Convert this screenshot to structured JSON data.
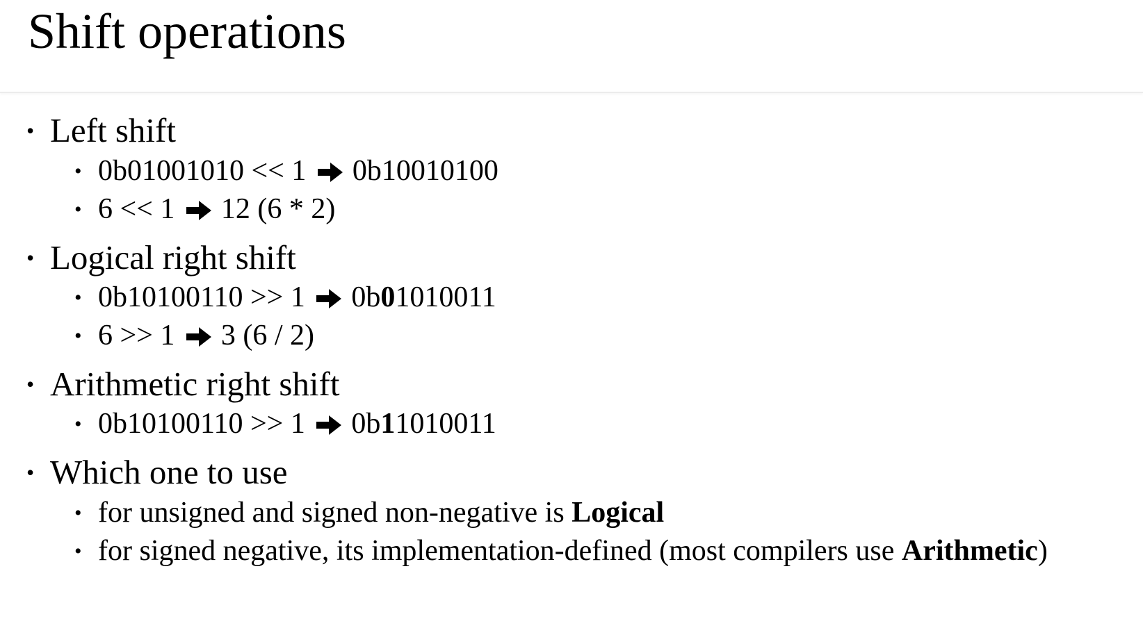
{
  "title": "Shift operations",
  "arrow_icon": "heavy-right-arrow-icon",
  "bullets": [
    {
      "label": "Left shift",
      "items": [
        {
          "before": "0b01001010 << 1",
          "after_prefix": "0b10010100",
          "after_bold": "",
          "after_rest": ""
        },
        {
          "before": "6 << 1",
          "after_prefix": "12 (6 * 2)",
          "after_bold": "",
          "after_rest": ""
        }
      ]
    },
    {
      "label": "Logical right shift",
      "items": [
        {
          "before": "0b10100110 >> 1",
          "after_prefix": "0b",
          "after_bold": "0",
          "after_rest": "1010011"
        },
        {
          "before": "6 >> 1",
          "after_prefix": "3 (6 / 2)",
          "after_bold": "",
          "after_rest": ""
        }
      ]
    },
    {
      "label": "Arithmetic right shift",
      "items": [
        {
          "before": "0b10100110 >> 1",
          "after_prefix": "0b",
          "after_bold": "1",
          "after_rest": "1010011"
        }
      ]
    },
    {
      "label": "Which one to use",
      "items": [
        {
          "text": "for unsigned and signed non-negative is ",
          "bold": "Logical",
          "tail": ""
        },
        {
          "text": "for signed negative, its implementation-defined (most compilers use ",
          "bold": "Arithmetic",
          "tail": ")"
        }
      ]
    }
  ]
}
